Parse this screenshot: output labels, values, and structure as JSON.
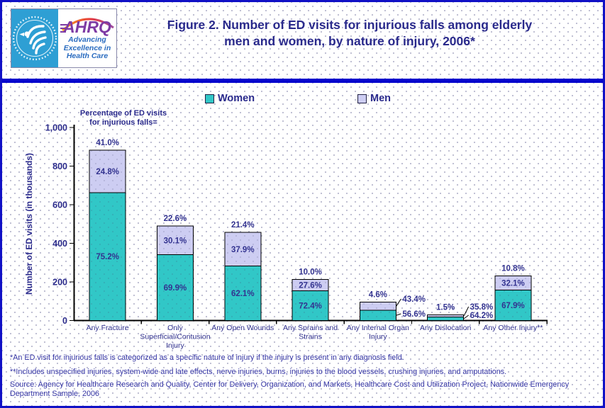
{
  "header": {
    "title_lines": [
      "Figure 2. Number of ED visits for injurious falls among elderly",
      "men and women, by nature of injury, 2006*"
    ],
    "logo": {
      "org_abbrev": "AHRQ",
      "tagline_lines": [
        "Advancing",
        "Excellence in",
        "Health Care"
      ]
    }
  },
  "legend": {
    "items": [
      {
        "label": "Women",
        "color": "#31c7c7"
      },
      {
        "label": "Men",
        "color": "#cdcdf2"
      }
    ]
  },
  "chart_data": {
    "type": "bar",
    "stacked": true,
    "title": "Figure 2. Number of ED visits for injurious falls among elderly men and women, by nature of injury, 2006*",
    "ylabel": "Number of ED visits (in thousands)",
    "xlabel": "",
    "ylim": [
      0,
      1000
    ],
    "y_ticks": [
      {
        "value": 0,
        "label": "0"
      },
      {
        "value": 200,
        "label": "200"
      },
      {
        "value": 400,
        "label": "400"
      },
      {
        "value": 600,
        "label": "600"
      },
      {
        "value": 800,
        "label": "800"
      },
      {
        "value": 1000,
        "label": "1,000"
      }
    ],
    "grid": false,
    "legend_position": "top",
    "annotation_lines": [
      "Percentage of ED visits",
      "for injurious falls="
    ],
    "categories": [
      "Any Fracture",
      "Only Superficial/Contusion Injury",
      "Any Open Wounds",
      "Any Sprains and Strains",
      "Any Internal Organ Injury",
      "Any Dislocation",
      "Any Other Injury**"
    ],
    "category_label_lines": [
      [
        "Any Fracture"
      ],
      [
        "Only",
        "Superficial/Contusion",
        "Injury"
      ],
      [
        "Any Open Wounds"
      ],
      [
        "Any Sprains and",
        "Strains"
      ],
      [
        "Any Internal Organ",
        "Injury"
      ],
      [
        "Any Dislocation"
      ],
      [
        "Any Other Injury**"
      ]
    ],
    "series": [
      {
        "name": "Women",
        "color": "#31c7c7",
        "values_thousands_est": [
          663,
          342,
          283,
          154,
          54,
          19,
          158
        ],
        "pct_labels": [
          "75.2%",
          "69.9%",
          "62.1%",
          "72.4%",
          "56.6%",
          "64.2%",
          "67.9%"
        ]
      },
      {
        "name": "Men",
        "color": "#cdcdf2",
        "values_thousands_est": [
          219,
          147,
          173,
          59,
          42,
          11,
          74
        ],
        "pct_labels": [
          "24.8%",
          "30.1%",
          "37.9%",
          "27.6%",
          "43.4%",
          "35.8%",
          "32.1%"
        ]
      }
    ],
    "total_pct_labels": [
      "41.0%",
      "22.6%",
      "21.4%",
      "10.0%",
      "4.6%",
      "1.5%",
      "10.8%"
    ],
    "callout_category_indexes": [
      4,
      5
    ]
  },
  "footnotes": {
    "note1": "*An ED visit for injurious falls is categorized as a specific nature of injury if the injury is present in any diagnosis field.",
    "note2": "**Includes unspecified injuries, system-wide and late effects, nerve injuries, burns, injuries to the blood vessels, crushing injuries, and amputations.",
    "source_lines": [
      "Source: Agency for Healthcare Research and Quality, Center for Delivery, Organization, and Markets, Healthcare Cost and Utilization Project, Nationwide Emergency",
      "Department Sample, 2006"
    ]
  }
}
